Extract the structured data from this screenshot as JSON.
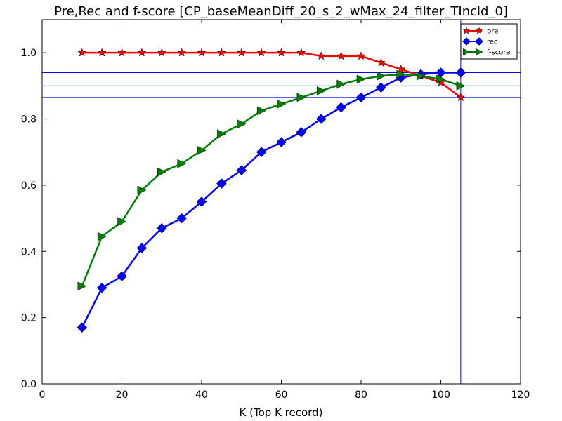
{
  "chart_data": {
    "type": "line",
    "title": "Pre,Rec and f-score [CP_baseMeanDiff_20_s_2_wMax_24_filter_TIncld_0]",
    "xlabel": "K (Top K record)",
    "ylabel": "",
    "xlim": [
      0,
      120
    ],
    "ylim": [
      0.0,
      1.1
    ],
    "xticks": [
      "0",
      "20",
      "40",
      "60",
      "80",
      "100",
      "120"
    ],
    "yticks": [
      "0.0",
      "0.2",
      "0.4",
      "0.6",
      "0.8",
      "1.0"
    ],
    "grid": false,
    "legend_position": "top-right",
    "x": [
      10,
      15,
      20,
      25,
      30,
      35,
      40,
      45,
      50,
      55,
      60,
      65,
      70,
      75,
      80,
      85,
      90,
      95,
      100,
      105
    ],
    "series": [
      {
        "name": "pre",
        "color": "#ff0000",
        "marker": "star",
        "values": [
          1.0,
          1.0,
          1.0,
          1.0,
          1.0,
          1.0,
          1.0,
          1.0,
          1.0,
          1.0,
          1.0,
          1.0,
          0.99,
          0.99,
          0.99,
          0.97,
          0.95,
          0.93,
          0.91,
          0.865
        ]
      },
      {
        "name": "rec",
        "color": "#0000ff",
        "marker": "diamond",
        "values": [
          0.17,
          0.29,
          0.325,
          0.41,
          0.47,
          0.5,
          0.55,
          0.605,
          0.645,
          0.7,
          0.73,
          0.76,
          0.8,
          0.835,
          0.865,
          0.895,
          0.925,
          0.935,
          0.94,
          0.94
        ]
      },
      {
        "name": "f-score",
        "color": "#008000",
        "marker": "triangle-right",
        "values": [
          0.295,
          0.445,
          0.49,
          0.585,
          0.64,
          0.665,
          0.705,
          0.755,
          0.785,
          0.825,
          0.845,
          0.865,
          0.885,
          0.905,
          0.92,
          0.93,
          0.935,
          0.93,
          0.92,
          0.9
        ]
      }
    ],
    "reference_lines": {
      "vertical_x": [
        105
      ],
      "horizontal_y": [
        0.94,
        0.9,
        0.865
      ],
      "color": "#0000ff"
    }
  }
}
